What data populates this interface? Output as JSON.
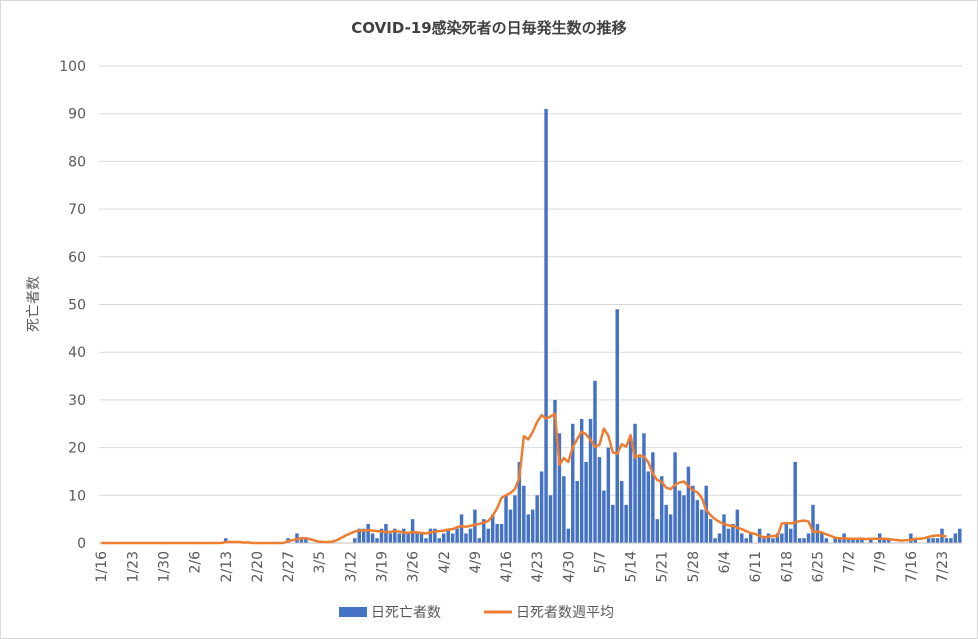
{
  "chart_data": {
    "type": "bar",
    "title": "COVID-19感染死者の日毎発生数の推移",
    "xlabel": "",
    "ylabel": "死亡者数",
    "ylim": [
      0,
      100
    ],
    "yticks": [
      0,
      10,
      20,
      30,
      40,
      50,
      60,
      70,
      80,
      90,
      100
    ],
    "grid": true,
    "legend_position": "bottom",
    "x_start": "1/16",
    "x_end": "7/25",
    "x_tick_labels": [
      "1/16",
      "1/23",
      "1/30",
      "2/6",
      "2/13",
      "2/20",
      "2/27",
      "3/5",
      "3/12",
      "3/19",
      "3/26",
      "4/2",
      "4/9",
      "4/16",
      "4/23",
      "4/30",
      "5/7",
      "5/14",
      "5/21",
      "5/28",
      "6/4",
      "6/11",
      "6/18",
      "6/25",
      "7/2",
      "7/9",
      "7/16",
      "7/23"
    ],
    "series": [
      {
        "name": "日死亡者数",
        "type": "bar",
        "color": "#4472c4",
        "values": [
          0,
          0,
          0,
          0,
          0,
          0,
          0,
          0,
          0,
          0,
          0,
          0,
          0,
          0,
          0,
          0,
          0,
          0,
          0,
          0,
          0,
          0,
          0,
          0,
          0,
          0,
          0,
          0,
          1,
          0,
          0,
          0,
          0,
          0,
          0,
          0,
          0,
          0,
          0,
          0,
          0,
          0,
          1,
          0,
          2,
          1,
          1,
          0,
          0,
          0,
          0,
          0,
          0,
          0,
          0,
          0,
          0,
          1,
          3,
          3,
          4,
          2,
          1,
          3,
          4,
          2,
          3,
          2,
          3,
          2,
          5,
          2,
          2,
          1,
          3,
          3,
          1,
          2,
          3,
          2,
          3,
          6,
          2,
          3,
          7,
          1,
          5,
          3,
          6,
          4,
          4,
          10,
          7,
          10,
          17,
          12,
          6,
          7,
          10,
          15,
          91,
          10,
          30,
          23,
          14,
          3,
          25,
          13,
          26,
          17,
          26,
          34,
          18,
          11,
          20,
          8,
          49,
          13,
          8,
          22,
          25,
          18,
          23,
          15,
          19,
          5,
          14,
          8,
          6,
          19,
          11,
          10,
          16,
          12,
          9,
          7,
          12,
          5,
          1,
          2,
          6,
          3,
          4,
          7,
          2,
          1,
          2,
          0,
          3,
          1,
          2,
          1,
          2,
          2,
          4,
          3,
          17,
          1,
          1,
          2,
          8,
          4,
          2,
          1,
          0,
          1,
          1,
          2,
          1,
          1,
          1,
          1,
          0,
          1,
          0,
          2,
          1,
          1,
          0,
          0,
          0,
          0,
          2,
          1,
          0,
          0,
          1,
          1,
          1,
          3,
          1,
          1,
          2,
          3
        ]
      },
      {
        "name": "日死者数週平均",
        "type": "line",
        "color": "#ed7d31",
        "values": [
          0,
          0,
          0,
          0,
          0,
          0,
          0,
          0,
          0,
          0,
          0,
          0,
          0,
          0,
          0,
          0,
          0,
          0,
          0,
          0,
          0,
          0,
          0,
          0,
          0,
          0,
          0,
          0,
          0.2,
          0.2,
          0.2,
          0.2,
          0.1,
          0.1,
          0,
          0,
          0,
          0,
          0,
          0,
          0,
          0,
          0.4,
          0.6,
          0.8,
          1,
          1,
          0.8,
          0.5,
          0.3,
          0.2,
          0.2,
          0.3,
          0.6,
          1.1,
          1.6,
          2,
          2.4,
          2.6,
          2.6,
          2.7,
          2.6,
          2.5,
          2.4,
          2.3,
          2.3,
          2.5,
          2.4,
          2.2,
          2.1,
          2.3,
          2.2,
          2.1,
          2,
          2.2,
          2.4,
          2.5,
          2.6,
          2.8,
          2.9,
          3.3,
          3.5,
          3.4,
          3.6,
          3.8,
          4,
          4.3,
          4.6,
          5.7,
          7.3,
          9.5,
          10,
          10.5,
          11.3,
          13.7,
          22.4,
          21.7,
          23.3,
          25.4,
          26.8,
          26.1,
          26.5,
          27.1,
          16.4,
          17.8,
          17,
          20.1,
          21.8,
          23.3,
          22.8,
          21.6,
          20.2,
          20.6,
          24,
          22.5,
          19,
          18.7,
          20.7,
          20.2,
          22.6,
          17.9,
          18.4,
          18.1,
          16.9,
          14.5,
          13.2,
          12.8,
          11.6,
          11.3,
          12.2,
          12.7,
          12.9,
          11.9,
          11.1,
          10.6,
          9.5,
          6.9,
          5.8,
          5,
          4.4,
          4,
          3.7,
          3.6,
          3.2,
          2.9,
          2.5,
          2.1,
          1.9,
          1.5,
          1.2,
          1.3,
          1.5,
          1.4,
          4.1,
          4.2,
          4.1,
          4.3,
          4.6,
          4.7,
          4.5,
          2.3,
          2.4,
          2.2,
          1.8,
          1.5,
          1.1,
          1,
          1,
          0.9,
          0.9,
          0.9,
          0.9,
          0.8,
          0.9,
          0.9,
          0.9,
          0.9,
          0.8,
          0.7,
          0.6,
          0.5,
          0.6,
          0.6,
          0.9,
          0.9,
          1,
          1.3,
          1.5,
          1.6,
          1.5,
          1.4
        ]
      }
    ]
  }
}
